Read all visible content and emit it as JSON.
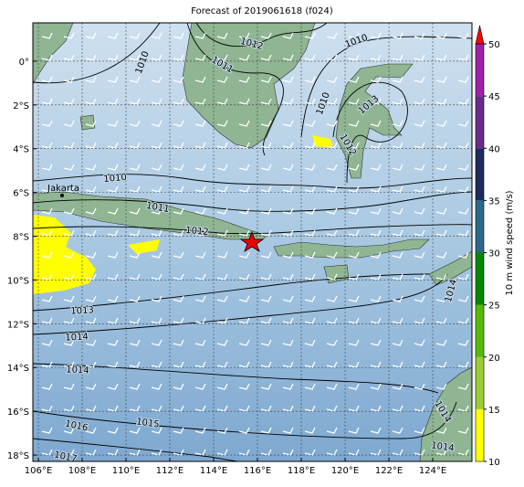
{
  "title": "Forecast of 2019061618 (f024)",
  "map": {
    "xlim": [
      105.75,
      125.79
    ],
    "ylim": [
      -18.29,
      1.75
    ],
    "grid": true,
    "xticks": [
      {
        "value": 106,
        "label": "106°E"
      },
      {
        "value": 108,
        "label": "108°E"
      },
      {
        "value": 110,
        "label": "110°E"
      },
      {
        "value": 112,
        "label": "112°E"
      },
      {
        "value": 114,
        "label": "114°E"
      },
      {
        "value": 116,
        "label": "116°E"
      },
      {
        "value": 118,
        "label": "118°E"
      },
      {
        "value": 120,
        "label": "120°E"
      },
      {
        "value": 122,
        "label": "122°E"
      },
      {
        "value": 124,
        "label": "124°E"
      }
    ],
    "yticks": [
      {
        "value": 0,
        "label": "0°"
      },
      {
        "value": -2,
        "label": "2°S"
      },
      {
        "value": -4,
        "label": "4°S"
      },
      {
        "value": -6,
        "label": "6°S"
      },
      {
        "value": -8,
        "label": "8°S"
      },
      {
        "value": -10,
        "label": "10°S"
      },
      {
        "value": -12,
        "label": "12°S"
      },
      {
        "value": -14,
        "label": "14°S"
      },
      {
        "value": -16,
        "label": "16°S"
      },
      {
        "value": -18,
        "label": "18°S"
      }
    ]
  },
  "isobar_labels": [
    1010,
    1012,
    1011,
    1010,
    1010,
    1013,
    1012,
    1010,
    1011,
    1012,
    1013,
    1014,
    1014,
    1016,
    1015,
    1017,
    1014,
    1014,
    1014
  ],
  "places": [
    "Jakarta"
  ],
  "colorbar": {
    "label": "10 m wind speed (m/s)",
    "ticks": [
      10,
      15,
      20,
      25,
      30,
      35,
      40,
      45,
      50
    ],
    "colors": [
      "#ffff00",
      "#9acd32",
      "#55bb00",
      "#008800",
      "#2a6a88",
      "#1c2a5c",
      "#6a2a8a",
      "#a020a8"
    ],
    "extend_color": "#ff0000"
  }
}
